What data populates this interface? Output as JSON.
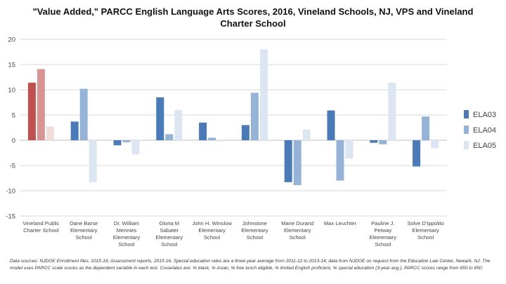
{
  "chart_data": {
    "type": "bar",
    "title": "\"Value Added,\" PARCC English Language Arts Scores, 2016, Vineland Schools, NJ, VPS and Vineland Charter School",
    "xlabel": "",
    "ylabel": "",
    "ylim": [
      -15,
      20
    ],
    "yticks": [
      "-15",
      "-10",
      "-5",
      "0",
      "5",
      "10",
      "15",
      "20"
    ],
    "ytick_values": [
      -15,
      -10,
      -5,
      0,
      5,
      10,
      15,
      20
    ],
    "grid": true,
    "legend_position": "right",
    "categories": [
      [
        "Vineland Public",
        "Charter School"
      ],
      [
        "Dane Barse",
        "Elementary",
        "School"
      ],
      [
        "Dr. William",
        "Mennies",
        "Elementary",
        "School"
      ],
      [
        "Gloria M",
        "Sabater",
        "Elementary",
        "School"
      ],
      [
        "John H. Winslow",
        "Elementary",
        "School"
      ],
      [
        "Johnstone",
        "Elementary",
        "School"
      ],
      [
        "Marie Durand",
        "Elementary",
        "School"
      ],
      [
        "Max Leuchter"
      ],
      [
        "Pauline J.",
        "Petway",
        "Elementary",
        "School"
      ],
      [
        "Solve D'Ippolito",
        "Elementary",
        "School"
      ]
    ],
    "series": [
      {
        "name": "ELA03",
        "color": "#4a7ab8",
        "values": [
          11.4,
          3.7,
          -1.0,
          8.5,
          3.5,
          3.0,
          -8.3,
          5.9,
          -0.5,
          -5.2
        ]
      },
      {
        "name": "ELA04",
        "color": "#95b3d7",
        "values": [
          14.1,
          10.2,
          -0.4,
          1.2,
          0.5,
          9.4,
          -8.9,
          -8.0,
          -0.8,
          4.7
        ]
      },
      {
        "name": "ELA05",
        "color": "#dce6f2",
        "values": [
          2.7,
          -8.3,
          -2.8,
          6.0,
          -0.2,
          18.0,
          2.1,
          -3.6,
          11.4,
          -1.6
        ]
      }
    ],
    "highlight_colors": {
      "ELA03": "#c0504d",
      "ELA04": "#d99594",
      "ELA05": "#f2dcdb"
    }
  },
  "footnote": "Data sources: NJDOE Enrollment files, 2015-16; Assessment reports, 2015-16. Special education rates are a three-year average from 2011-12 to 2013-14; data from NJDOE on request from the Educaiton Law Center, Newark, NJ. The model uses PARCC scale scores as the dependent variable in each test. Covariates are: % black, % Asian, % free lunch eligible, % limited English proficient, % special education (3-year avg.). PARCC scores range from 650 to 850."
}
